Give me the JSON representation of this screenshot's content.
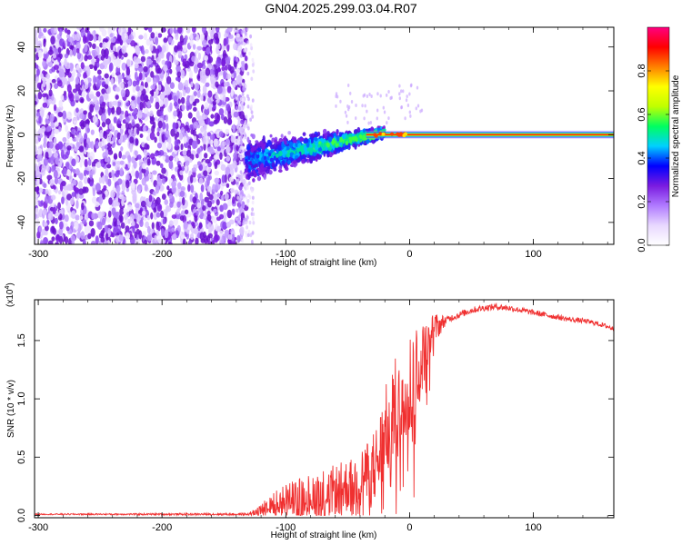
{
  "title": "GN04.2025.299.03.04.R07",
  "colors": {
    "snr_line": "#f03030",
    "scatter_purple": "#7a1be0",
    "axis": "#000000"
  },
  "chart_data": [
    {
      "type": "heatmap",
      "name": "spectrogram",
      "xlabel": "Height of straight line (km)",
      "ylabel": "Frequency (Hz)",
      "xlim": [
        -303,
        165
      ],
      "ylim": [
        -50,
        49
      ],
      "x_ticks": [
        -300,
        -200,
        -100,
        0,
        100
      ],
      "x_tick_labels": [
        "-300",
        "-200",
        "-100",
        "0",
        "100"
      ],
      "y_ticks": [
        -40,
        -20,
        0,
        20,
        40
      ],
      "y_tick_labels": [
        "-40",
        "-20",
        "0",
        "20",
        "40"
      ],
      "colorbar": {
        "label": "Normalized spectral amplitude",
        "range": [
          0,
          1
        ],
        "ticks": [
          0.0,
          0.2,
          0.4,
          0.6,
          0.8
        ],
        "tick_labels": [
          "0.0",
          "0.2",
          "0.4",
          "0.6",
          "0.8"
        ],
        "colors": [
          "#ffffff",
          "#e8d8ff",
          "#b07aff",
          "#7a1be0",
          "#0000ff",
          "#00d0ff",
          "#00ff60",
          "#c0ff00",
          "#ffff00",
          "#ff8000",
          "#ff0000",
          "#ff0080"
        ]
      },
      "regions": [
        {
          "description": "dense broadband noise",
          "x_range": [
            -303,
            -132
          ],
          "freq_range": [
            -50,
            49
          ],
          "amplitude": 0.1
        },
        {
          "description": "signal emerging",
          "x_range": [
            -132,
            -20
          ],
          "freq_center_start": -12,
          "freq_center_end": 1,
          "amplitude": 0.4
        },
        {
          "description": "strong narrowband line",
          "x_range": [
            -20,
            165
          ],
          "freq_center": 0,
          "amplitude": 0.9
        }
      ]
    },
    {
      "type": "line",
      "name": "snr",
      "xlabel": "Height of straight line (km)",
      "ylabel": "SNR (10 * v/v)",
      "y_multiplier": "(x10",
      "y_multiplier_exp": "4",
      "y_multiplier_close": ")",
      "xlim": [
        -303,
        165
      ],
      "ylim": [
        -0.02,
        1.85
      ],
      "x_ticks": [
        -300,
        -200,
        -100,
        0,
        100
      ],
      "x_tick_labels": [
        "-300",
        "-200",
        "-100",
        "0",
        "100"
      ],
      "y_ticks": [
        0.0,
        0.5,
        1.0,
        1.5
      ],
      "y_tick_labels": [
        "0.0",
        "0.5",
        "1.0",
        "1.5"
      ],
      "grid": false,
      "series": [
        {
          "color": "#f03030",
          "envelope_x": [
            -303,
            -130,
            -125,
            -115,
            -100,
            -80,
            -60,
            -45,
            -40,
            -30,
            -25,
            -20,
            -10,
            0,
            10,
            20,
            30,
            40,
            50,
            60,
            70,
            80,
            90,
            100,
            110,
            120,
            130,
            140,
            150,
            160,
            165
          ],
          "envelope_y": [
            0.01,
            0.01,
            0.03,
            0.08,
            0.13,
            0.18,
            0.22,
            0.27,
            0.32,
            0.38,
            0.48,
            0.7,
            0.95,
            1.1,
            1.35,
            1.6,
            1.68,
            1.72,
            1.76,
            1.78,
            1.79,
            1.78,
            1.76,
            1.74,
            1.72,
            1.7,
            1.68,
            1.67,
            1.65,
            1.62,
            1.6
          ],
          "noise_amplitude_x": [
            -303,
            -130,
            -100,
            -40,
            -20,
            0,
            15,
            30,
            165
          ],
          "noise_amplitude_y": [
            0.005,
            0.01,
            0.15,
            0.25,
            0.4,
            0.5,
            0.2,
            0.03,
            0.02
          ]
        }
      ]
    }
  ]
}
